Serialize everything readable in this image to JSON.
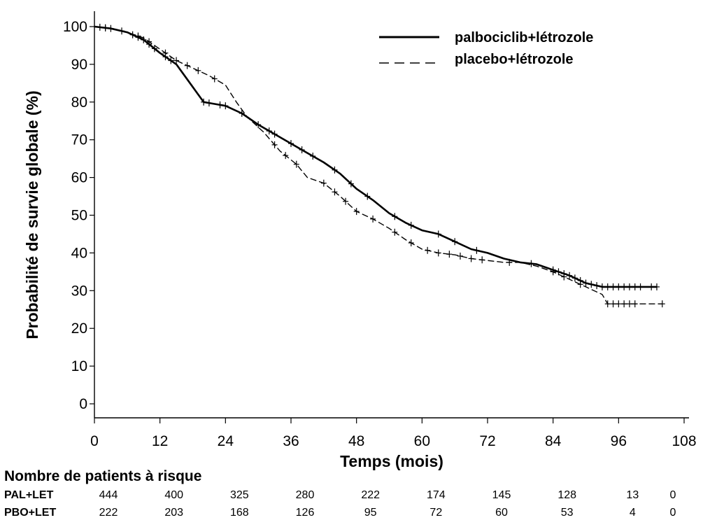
{
  "chart_data": {
    "type": "line",
    "title": "",
    "xlabel": "Temps (mois)",
    "ylabel": "Probabilité de survie globale (%)",
    "xlim": [
      0,
      108
    ],
    "ylim": [
      0,
      100
    ],
    "xticks": [
      "0",
      "12",
      "24",
      "36",
      "48",
      "60",
      "72",
      "84",
      "96",
      "108"
    ],
    "yticks": [
      "0",
      "10",
      "20",
      "30",
      "40",
      "50",
      "60",
      "70",
      "80",
      "90",
      "100"
    ],
    "legend_position": "top-right",
    "series": [
      {
        "name": "palbociclib+létrozole",
        "style": "solid",
        "color": "#000000",
        "x": [
          0,
          3,
          6,
          9,
          12,
          15,
          18,
          20,
          22,
          24,
          27,
          30,
          33,
          36,
          39,
          42,
          45,
          48,
          51,
          54,
          57,
          60,
          63,
          66,
          69,
          72,
          75,
          78,
          81,
          84,
          87,
          90,
          93,
          96,
          99,
          103
        ],
        "y": [
          100,
          99.5,
          98.5,
          96.5,
          93,
          90,
          84,
          80,
          79.5,
          79,
          77,
          74,
          71.5,
          69,
          66.5,
          64,
          61,
          57,
          54,
          50.5,
          48,
          46,
          45,
          43,
          41,
          40,
          38.5,
          37.5,
          37,
          35.5,
          34,
          32,
          31,
          31,
          31,
          31
        ]
      },
      {
        "name": "placebo+létrozole",
        "style": "dashed",
        "color": "#000000",
        "x": [
          0,
          3,
          6,
          9,
          12,
          15,
          18,
          21,
          24,
          26,
          28,
          31,
          34,
          37,
          39,
          42,
          45,
          48,
          51,
          54,
          57,
          60,
          63,
          66,
          69,
          72,
          75,
          78,
          81,
          84,
          87,
          90,
          93,
          94,
          98,
          104
        ],
        "y": [
          100,
          99.5,
          98.5,
          97,
          94,
          91,
          89,
          87,
          84.5,
          80,
          76,
          72,
          67,
          63.5,
          60,
          58.5,
          55,
          51,
          49,
          46.5,
          43.5,
          41,
          40,
          39.5,
          38.5,
          38,
          37.5,
          37.5,
          36.5,
          35,
          33,
          31,
          29,
          26.5,
          26.5,
          26.5
        ]
      }
    ],
    "censor_marks": [
      {
        "series": 0,
        "x": [
          1,
          2,
          3,
          7,
          8,
          9,
          10,
          11,
          13,
          14,
          20,
          21,
          23,
          24,
          27,
          30,
          32,
          33,
          36,
          38,
          40,
          44,
          47,
          50,
          55,
          58,
          63,
          66,
          70,
          80,
          84,
          85,
          86,
          87,
          88,
          89,
          90,
          91,
          92,
          93,
          94,
          95,
          96,
          97,
          98,
          99,
          100,
          102,
          103
        ]
      },
      {
        "series": 1,
        "x": [
          2,
          5,
          8,
          10,
          13,
          15,
          17,
          19,
          22,
          33,
          35,
          37,
          42,
          44,
          46,
          48,
          51,
          55,
          58,
          61,
          63,
          65,
          67,
          69,
          71,
          76,
          84,
          86,
          89,
          94,
          95,
          96,
          97,
          98,
          99,
          104
        ]
      }
    ],
    "risk_table": {
      "title": "Nombre de patients à risque",
      "times": [
        0,
        12,
        24,
        36,
        48,
        60,
        72,
        84,
        96,
        108
      ],
      "rows": [
        {
          "label": "PAL+LET",
          "values": [
            "444",
            "400",
            "325",
            "280",
            "222",
            "174",
            "145",
            "128",
            "13",
            "0"
          ]
        },
        {
          "label": "PBO+LET",
          "values": [
            "222",
            "203",
            "168",
            "126",
            "95",
            "72",
            "60",
            "53",
            "4",
            "0"
          ]
        }
      ]
    }
  }
}
